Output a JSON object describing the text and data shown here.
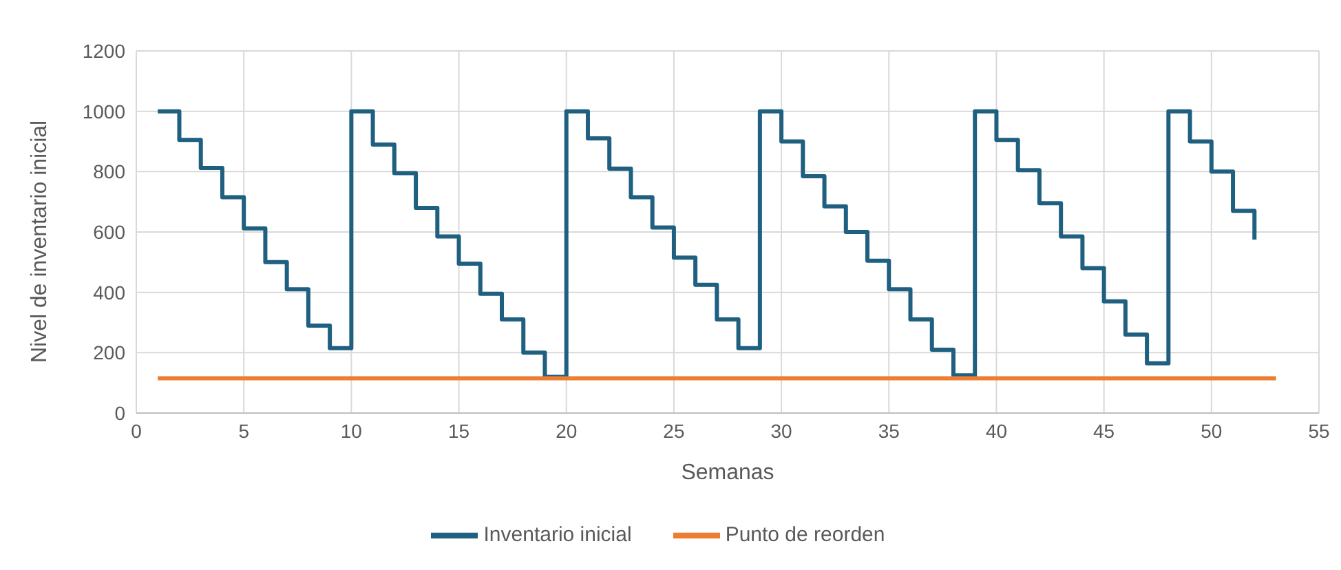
{
  "chart_data": {
    "type": "step",
    "xlabel": "Semanas",
    "ylabel": "Nivel de inventario inicial",
    "xlim": [
      0,
      55
    ],
    "xticks": [
      0,
      5,
      10,
      15,
      20,
      25,
      30,
      35,
      40,
      45,
      50,
      55
    ],
    "ylim": [
      0,
      1200
    ],
    "yticks": [
      0,
      200,
      400,
      600,
      800,
      1000,
      1200
    ],
    "grid": true,
    "legend": "bottom",
    "marker": "none",
    "line_style": "solid",
    "series": [
      {
        "name": "Inventario inicial",
        "color": "#1f5f80",
        "x": [
          1,
          2,
          3,
          4,
          5,
          6,
          7,
          8,
          9,
          10,
          11,
          12,
          13,
          14,
          15,
          16,
          17,
          18,
          19,
          20,
          21,
          22,
          23,
          24,
          25,
          26,
          27,
          28,
          29,
          30,
          31,
          32,
          33,
          34,
          35,
          36,
          37,
          38,
          39,
          40,
          41,
          42,
          43,
          44,
          45,
          46,
          47,
          48,
          49,
          50,
          51,
          52
        ],
        "values": [
          1000,
          905,
          812,
          715,
          612,
          500,
          410,
          290,
          215,
          1000,
          890,
          795,
          680,
          585,
          495,
          395,
          310,
          200,
          120,
          1000,
          910,
          810,
          715,
          615,
          515,
          425,
          310,
          215,
          1000,
          900,
          785,
          685,
          600,
          505,
          410,
          310,
          210,
          125,
          1000,
          905,
          805,
          695,
          585,
          480,
          370,
          260,
          165,
          1000,
          900,
          800,
          670,
          575
        ]
      },
      {
        "name": "Punto de reorden",
        "color": "#ed7d31",
        "x": [
          1,
          53
        ],
        "values": [
          115,
          115
        ]
      }
    ]
  }
}
